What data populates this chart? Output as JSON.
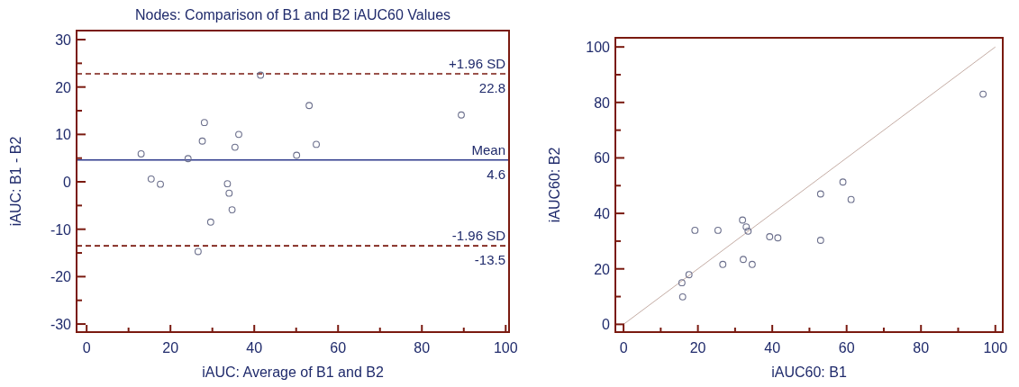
{
  "chart_data": [
    {
      "type": "scatter",
      "title": "Nodes: Comparison of B1 and B2 iAUC60 Values",
      "xlabel": "iAUC: Average of B1 and B2",
      "ylabel": "iAUC: B1 - B2",
      "xlim": [
        -2.4,
        100.8
      ],
      "ylim": [
        -31.7,
        31.9
      ],
      "xticks": [
        0,
        {
          "value": 10,
          "label": null
        },
        20,
        {
          "value": 30,
          "label": null
        },
        40,
        {
          "value": 50,
          "label": null
        },
        60,
        {
          "value": 70,
          "label": null
        },
        80,
        {
          "value": 90,
          "label": null
        },
        100
      ],
      "yticks": [
        -30,
        {
          "value": -25,
          "label": null
        },
        -20,
        {
          "value": -15,
          "label": null
        },
        -10,
        {
          "value": -5,
          "label": null
        },
        0,
        {
          "value": 5,
          "label": null
        },
        10,
        {
          "value": 15,
          "label": null
        },
        20,
        {
          "value": 25,
          "label": null
        },
        30
      ],
      "marker": "circle",
      "grid": false,
      "series": [
        {
          "color": "#6b6f8c",
          "x": [
            13.0,
            15.4,
            17.6,
            24.2,
            27.6,
            28.1,
            33.6,
            34.0,
            35.4,
            36.3,
            41.5,
            50.1,
            53.1,
            54.8,
            89.4,
            34.7,
            29.6,
            26.6
          ],
          "values": [
            5.9,
            0.6,
            -0.5,
            4.9,
            8.6,
            12.5,
            -0.4,
            -2.4,
            7.3,
            10.0,
            22.5,
            5.6,
            16.1,
            7.9,
            14.1,
            -5.9,
            -8.5,
            -14.7
          ]
        }
      ],
      "ref_lines": [
        {
          "axis": "y",
          "value": 22.8,
          "label": "+1.96 SD",
          "color": "#7a1a10",
          "line_style": "dashed"
        },
        {
          "axis": "y",
          "value": 4.6,
          "label": "Mean",
          "color": "#2e3a8c",
          "line_style": "solid"
        },
        {
          "axis": "y",
          "value": -13.5,
          "label": "-1.96 SD",
          "color": "#7a1a10",
          "line_style": "dashed"
        }
      ],
      "annotations": [
        {
          "text": "22.8",
          "y": 22.8
        },
        {
          "text": "4.6",
          "y": 4.6
        },
        {
          "text": "-13.5",
          "y": -13.5
        }
      ]
    },
    {
      "type": "scatter",
      "xlabel": "iAUC60: B1",
      "ylabel": "iAUC60: B2",
      "xlim": [
        -2.2,
        102
      ],
      "ylim": [
        -2.8,
        103.3
      ],
      "xticks": [
        0,
        {
          "value": 10,
          "label": null
        },
        20,
        {
          "value": 30,
          "label": null
        },
        40,
        {
          "value": 50,
          "label": null
        },
        60,
        {
          "value": 70,
          "label": null
        },
        80,
        {
          "value": 90,
          "label": null
        },
        100
      ],
      "yticks": [
        0,
        {
          "value": 10,
          "label": null
        },
        20,
        {
          "value": 30,
          "label": null
        },
        40,
        {
          "value": 50,
          "label": null
        },
        60,
        {
          "value": 70,
          "label": null
        },
        80,
        {
          "value": 90,
          "label": null
        },
        100
      ],
      "marker": "circle",
      "grid": false,
      "series": [
        {
          "type": "line",
          "marker": "none",
          "color": "#c4aca4",
          "x": [
            0,
            100
          ],
          "values": [
            0,
            100
          ]
        },
        {
          "color": "#6b6f8c",
          "x": [
            15.7,
            15.9,
            17.6,
            19.2,
            25.4,
            26.7,
            32.0,
            32.2,
            33.0,
            33.5,
            34.6,
            39.3,
            41.5,
            53.0,
            53.0,
            61.2,
            59.0,
            96.7
          ],
          "values": [
            15.0,
            9.9,
            17.9,
            33.9,
            33.9,
            21.6,
            37.6,
            23.4,
            35.1,
            33.6,
            21.6,
            31.6,
            31.2,
            30.3,
            47.0,
            45.0,
            51.3,
            83.0
          ]
        }
      ]
    }
  ]
}
